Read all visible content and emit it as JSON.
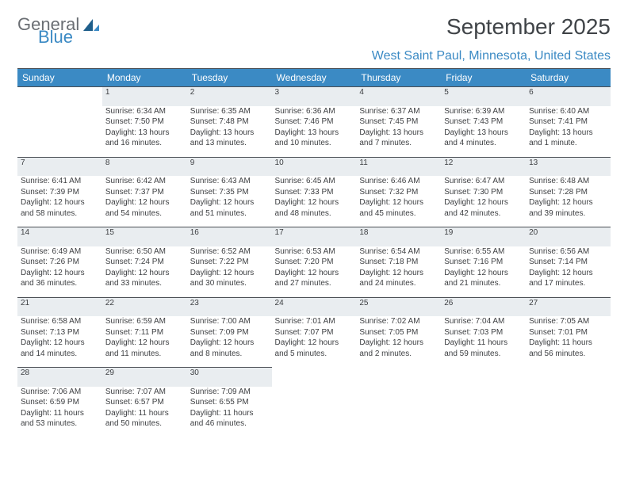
{
  "logo": {
    "text1": "General",
    "text2": "Blue"
  },
  "title": "September 2025",
  "location": "West Saint Paul, Minnesota, United States",
  "colors": {
    "header_bg": "#3b8ac4",
    "header_fg": "#ffffff",
    "daynum_bg": "#e9edf0",
    "text": "#3d3f42",
    "accent": "#3b8ac4"
  },
  "day_names": [
    "Sunday",
    "Monday",
    "Tuesday",
    "Wednesday",
    "Thursday",
    "Friday",
    "Saturday"
  ],
  "weeks": [
    [
      null,
      {
        "n": "1",
        "sr": "Sunrise: 6:34 AM",
        "ss": "Sunset: 7:50 PM",
        "dl": "Daylight: 13 hours and 16 minutes."
      },
      {
        "n": "2",
        "sr": "Sunrise: 6:35 AM",
        "ss": "Sunset: 7:48 PM",
        "dl": "Daylight: 13 hours and 13 minutes."
      },
      {
        "n": "3",
        "sr": "Sunrise: 6:36 AM",
        "ss": "Sunset: 7:46 PM",
        "dl": "Daylight: 13 hours and 10 minutes."
      },
      {
        "n": "4",
        "sr": "Sunrise: 6:37 AM",
        "ss": "Sunset: 7:45 PM",
        "dl": "Daylight: 13 hours and 7 minutes."
      },
      {
        "n": "5",
        "sr": "Sunrise: 6:39 AM",
        "ss": "Sunset: 7:43 PM",
        "dl": "Daylight: 13 hours and 4 minutes."
      },
      {
        "n": "6",
        "sr": "Sunrise: 6:40 AM",
        "ss": "Sunset: 7:41 PM",
        "dl": "Daylight: 13 hours and 1 minute."
      }
    ],
    [
      {
        "n": "7",
        "sr": "Sunrise: 6:41 AM",
        "ss": "Sunset: 7:39 PM",
        "dl": "Daylight: 12 hours and 58 minutes."
      },
      {
        "n": "8",
        "sr": "Sunrise: 6:42 AM",
        "ss": "Sunset: 7:37 PM",
        "dl": "Daylight: 12 hours and 54 minutes."
      },
      {
        "n": "9",
        "sr": "Sunrise: 6:43 AM",
        "ss": "Sunset: 7:35 PM",
        "dl": "Daylight: 12 hours and 51 minutes."
      },
      {
        "n": "10",
        "sr": "Sunrise: 6:45 AM",
        "ss": "Sunset: 7:33 PM",
        "dl": "Daylight: 12 hours and 48 minutes."
      },
      {
        "n": "11",
        "sr": "Sunrise: 6:46 AM",
        "ss": "Sunset: 7:32 PM",
        "dl": "Daylight: 12 hours and 45 minutes."
      },
      {
        "n": "12",
        "sr": "Sunrise: 6:47 AM",
        "ss": "Sunset: 7:30 PM",
        "dl": "Daylight: 12 hours and 42 minutes."
      },
      {
        "n": "13",
        "sr": "Sunrise: 6:48 AM",
        "ss": "Sunset: 7:28 PM",
        "dl": "Daylight: 12 hours and 39 minutes."
      }
    ],
    [
      {
        "n": "14",
        "sr": "Sunrise: 6:49 AM",
        "ss": "Sunset: 7:26 PM",
        "dl": "Daylight: 12 hours and 36 minutes."
      },
      {
        "n": "15",
        "sr": "Sunrise: 6:50 AM",
        "ss": "Sunset: 7:24 PM",
        "dl": "Daylight: 12 hours and 33 minutes."
      },
      {
        "n": "16",
        "sr": "Sunrise: 6:52 AM",
        "ss": "Sunset: 7:22 PM",
        "dl": "Daylight: 12 hours and 30 minutes."
      },
      {
        "n": "17",
        "sr": "Sunrise: 6:53 AM",
        "ss": "Sunset: 7:20 PM",
        "dl": "Daylight: 12 hours and 27 minutes."
      },
      {
        "n": "18",
        "sr": "Sunrise: 6:54 AM",
        "ss": "Sunset: 7:18 PM",
        "dl": "Daylight: 12 hours and 24 minutes."
      },
      {
        "n": "19",
        "sr": "Sunrise: 6:55 AM",
        "ss": "Sunset: 7:16 PM",
        "dl": "Daylight: 12 hours and 21 minutes."
      },
      {
        "n": "20",
        "sr": "Sunrise: 6:56 AM",
        "ss": "Sunset: 7:14 PM",
        "dl": "Daylight: 12 hours and 17 minutes."
      }
    ],
    [
      {
        "n": "21",
        "sr": "Sunrise: 6:58 AM",
        "ss": "Sunset: 7:13 PM",
        "dl": "Daylight: 12 hours and 14 minutes."
      },
      {
        "n": "22",
        "sr": "Sunrise: 6:59 AM",
        "ss": "Sunset: 7:11 PM",
        "dl": "Daylight: 12 hours and 11 minutes."
      },
      {
        "n": "23",
        "sr": "Sunrise: 7:00 AM",
        "ss": "Sunset: 7:09 PM",
        "dl": "Daylight: 12 hours and 8 minutes."
      },
      {
        "n": "24",
        "sr": "Sunrise: 7:01 AM",
        "ss": "Sunset: 7:07 PM",
        "dl": "Daylight: 12 hours and 5 minutes."
      },
      {
        "n": "25",
        "sr": "Sunrise: 7:02 AM",
        "ss": "Sunset: 7:05 PM",
        "dl": "Daylight: 12 hours and 2 minutes."
      },
      {
        "n": "26",
        "sr": "Sunrise: 7:04 AM",
        "ss": "Sunset: 7:03 PM",
        "dl": "Daylight: 11 hours and 59 minutes."
      },
      {
        "n": "27",
        "sr": "Sunrise: 7:05 AM",
        "ss": "Sunset: 7:01 PM",
        "dl": "Daylight: 11 hours and 56 minutes."
      }
    ],
    [
      {
        "n": "28",
        "sr": "Sunrise: 7:06 AM",
        "ss": "Sunset: 6:59 PM",
        "dl": "Daylight: 11 hours and 53 minutes."
      },
      {
        "n": "29",
        "sr": "Sunrise: 7:07 AM",
        "ss": "Sunset: 6:57 PM",
        "dl": "Daylight: 11 hours and 50 minutes."
      },
      {
        "n": "30",
        "sr": "Sunrise: 7:09 AM",
        "ss": "Sunset: 6:55 PM",
        "dl": "Daylight: 11 hours and 46 minutes."
      },
      null,
      null,
      null,
      null
    ]
  ]
}
